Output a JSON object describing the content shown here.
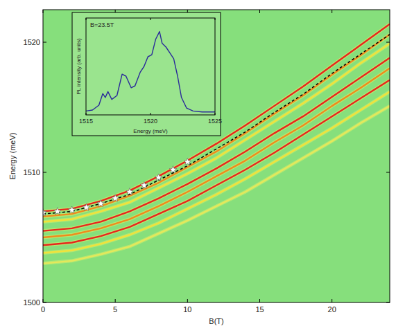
{
  "chart_data": [
    {
      "type": "line",
      "x_label": "B(T)",
      "y_label": "Energy (meV)",
      "x": [
        0,
        2,
        4,
        6,
        8,
        10,
        12,
        14,
        16,
        18,
        20,
        22,
        24
      ],
      "xlim": [
        0,
        24
      ],
      "xticks": [
        0,
        5,
        10,
        15,
        20
      ],
      "ylim": [
        1500,
        1522.5
      ],
      "yticks": [
        1500,
        1510,
        1520
      ],
      "grid": false,
      "series": [
        {
          "color": "#e8261c",
          "values": [
            1507.0,
            1507.2,
            1507.8,
            1508.6,
            1509.7,
            1510.9,
            1512.2,
            1513.6,
            1515.1,
            1516.6,
            1518.2,
            1519.8,
            1521.4
          ]
        },
        {
          "color": "#f08a1c",
          "values": [
            1506.6,
            1506.8,
            1507.4,
            1508.2,
            1509.2,
            1510.4,
            1511.6,
            1513.0,
            1514.5,
            1515.9,
            1517.5,
            1519.0,
            1520.6
          ]
        },
        {
          "color": "#f2e23a",
          "values": [
            1506.2,
            1506.4,
            1507.0,
            1507.7,
            1508.8,
            1509.9,
            1511.1,
            1512.5,
            1513.9,
            1515.3,
            1516.8,
            1518.4,
            1519.9
          ]
        },
        {
          "color": "#e8261c",
          "values": [
            1505.5,
            1505.7,
            1506.2,
            1507.0,
            1508.0,
            1509.1,
            1510.3,
            1511.6,
            1513.0,
            1514.3,
            1515.8,
            1517.3,
            1518.8
          ]
        },
        {
          "color": "#f08a1c",
          "values": [
            1505.0,
            1505.2,
            1505.7,
            1506.4,
            1507.4,
            1508.5,
            1509.7,
            1510.9,
            1512.3,
            1513.6,
            1515.1,
            1516.5,
            1518.0
          ]
        },
        {
          "color": "#e8261c",
          "values": [
            1504.4,
            1504.6,
            1505.1,
            1505.8,
            1506.8,
            1507.8,
            1509.0,
            1510.2,
            1511.5,
            1512.9,
            1514.3,
            1515.7,
            1517.1
          ]
        },
        {
          "color": "#f2e23a",
          "values": [
            1503.8,
            1504.0,
            1504.5,
            1505.2,
            1506.1,
            1507.2,
            1508.3,
            1509.5,
            1510.8,
            1512.1,
            1513.4,
            1514.8,
            1516.2
          ]
        },
        {
          "color": "#e6e85a",
          "values": [
            1503.0,
            1503.2,
            1503.7,
            1504.3,
            1505.3,
            1506.3,
            1507.4,
            1508.5,
            1509.8,
            1511.1,
            1512.4,
            1513.8,
            1515.1
          ]
        },
        {
          "color": "#000000",
          "line_style": "dashed",
          "values": [
            1506.8,
            1507.0,
            1507.6,
            1508.3,
            1509.4,
            1510.5,
            1511.8,
            1513.1,
            1514.6,
            1516.0,
            1517.6,
            1519.1,
            1520.6
          ]
        },
        {
          "type": "scatter",
          "marker": "star",
          "color": "#ffffff",
          "x": [
            0,
            1,
            2,
            3,
            4,
            5,
            6,
            7,
            8,
            9,
            10
          ],
          "values": [
            1506.9,
            1507.0,
            1507.1,
            1507.3,
            1507.6,
            1508.0,
            1508.5,
            1509.0,
            1509.6,
            1510.2,
            1510.8
          ]
        }
      ]
    },
    {
      "type": "line",
      "x_label": "Energy (meV)",
      "y_label": "PL intensity (arb. units)",
      "annotation": "B=23.5T",
      "x": [
        1515.0,
        1515.5,
        1516.0,
        1516.3,
        1516.5,
        1516.7,
        1517.0,
        1517.4,
        1517.8,
        1518.1,
        1518.5,
        1518.8,
        1519.2,
        1519.5,
        1519.8,
        1520.1,
        1520.4,
        1520.7,
        1520.9,
        1521.2,
        1521.5,
        1521.8,
        1522.1,
        1522.4,
        1522.8,
        1523.3,
        1524.0,
        1525.0
      ],
      "xlim": [
        1515,
        1525
      ],
      "xticks": [
        1515,
        1520,
        1525
      ],
      "ylim": [
        0,
        1
      ],
      "tick_labels": "x",
      "series": [
        {
          "color": "#2a2a9a",
          "values": [
            0.04,
            0.05,
            0.1,
            0.22,
            0.18,
            0.24,
            0.16,
            0.2,
            0.42,
            0.4,
            0.28,
            0.3,
            0.44,
            0.5,
            0.6,
            0.62,
            0.78,
            0.86,
            0.74,
            0.7,
            0.64,
            0.58,
            0.4,
            0.18,
            0.07,
            0.04,
            0.03,
            0.03
          ]
        }
      ]
    }
  ]
}
